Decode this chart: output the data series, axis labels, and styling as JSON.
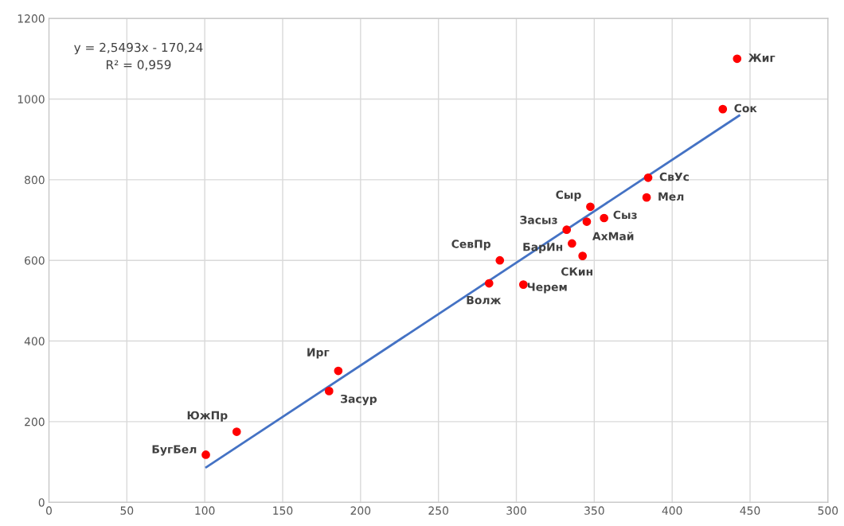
{
  "chart_data": {
    "type": "scatter",
    "grid": true,
    "legend": false,
    "xlim": [
      0,
      500
    ],
    "ylim": [
      0,
      1200
    ],
    "xticks": [
      0,
      50,
      100,
      150,
      200,
      250,
      300,
      350,
      400,
      450,
      500
    ],
    "yticks": [
      0,
      200,
      400,
      600,
      800,
      1000,
      1200
    ],
    "series": [
      {
        "marker": "circle",
        "color": "#ff0000",
        "x": [
          100.7,
          120.5,
          179.8,
          185.7,
          282.5,
          289.4,
          304.5,
          332.3,
          335.7,
          342.5,
          345.2,
          347.5,
          356.3,
          383.6,
          384.6,
          432.5,
          441.7
        ],
        "values": [
          118,
          175,
          276,
          326,
          543,
          600,
          540,
          676,
          642,
          611,
          696,
          733,
          705,
          756,
          805,
          975,
          1100
        ]
      },
      {
        "type": "line",
        "color": "#4472c4",
        "x": [
          101,
          443
        ],
        "values": [
          87,
          959
        ]
      }
    ],
    "annotations": [
      "y = 2,5493x - 170,24\nR² = 0,959",
      {
        "text": "БугБел",
        "x": 100.7,
        "y": 118
      },
      {
        "text": "ЮжПр",
        "x": 120.5,
        "y": 175
      },
      {
        "text": "Засур",
        "x": 179.8,
        "y": 276
      },
      {
        "text": "Ирг",
        "x": 185.7,
        "y": 326
      },
      {
        "text": "Волж",
        "x": 282.5,
        "y": 543
      },
      {
        "text": "СевПр",
        "x": 289.4,
        "y": 600
      },
      {
        "text": "Черем",
        "x": 304.5,
        "y": 540
      },
      {
        "text": "Засыз",
        "x": 332.3,
        "y": 676
      },
      {
        "text": "БарИн",
        "x": 335.7,
        "y": 642
      },
      {
        "text": "СКин",
        "x": 342.5,
        "y": 611
      },
      {
        "text": "АхМай",
        "x": 345.2,
        "y": 696
      },
      {
        "text": "Сыр",
        "x": 347.5,
        "y": 733
      },
      {
        "text": "Сыз",
        "x": 356.3,
        "y": 705
      },
      {
        "text": "Мел",
        "x": 383.6,
        "y": 756
      },
      {
        "text": "СвУс",
        "x": 384.6,
        "y": 805
      },
      {
        "text": "Сок",
        "x": 432.5,
        "y": 975
      },
      {
        "text": "Жиг",
        "x": 441.7,
        "y": 1100
      }
    ]
  }
}
